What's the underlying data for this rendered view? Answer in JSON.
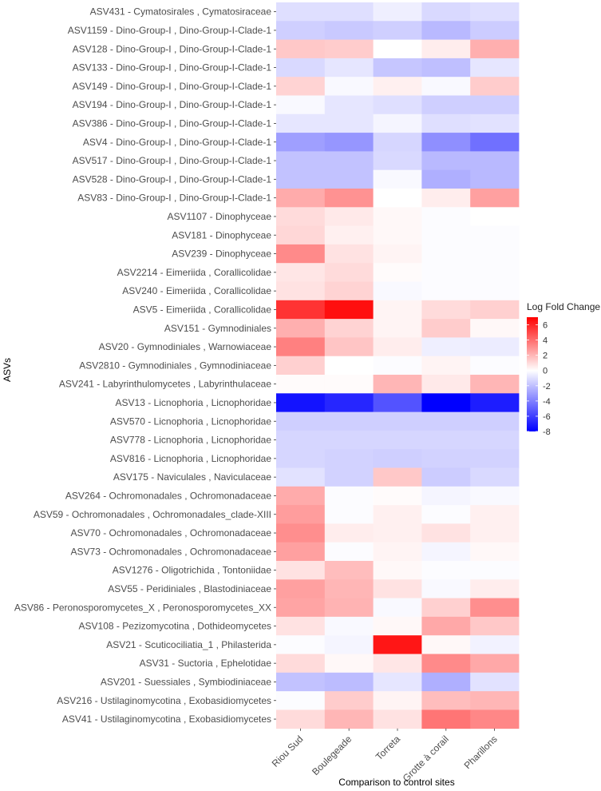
{
  "chart_data": {
    "type": "heatmap",
    "title": "",
    "xlabel": "Comparison to control sites",
    "ylabel": "ASVs",
    "columns": [
      "Riou Sud",
      "Boulegeade",
      "Torreta",
      "Grotte à corail",
      "Pharillons"
    ],
    "rows": [
      "ASV431 - Cymatosirales , Cymatosiraceae",
      "ASV1159 - Dino-Group-I , Dino-Group-I-Clade-1",
      "ASV128 - Dino-Group-I , Dino-Group-I-Clade-1",
      "ASV133 - Dino-Group-I , Dino-Group-I-Clade-1",
      "ASV149 - Dino-Group-I , Dino-Group-I-Clade-1",
      "ASV194 - Dino-Group-I , Dino-Group-I-Clade-1",
      "ASV386 - Dino-Group-I , Dino-Group-I-Clade-1",
      "ASV4 - Dino-Group-I , Dino-Group-I-Clade-1",
      "ASV517 - Dino-Group-I , Dino-Group-I-Clade-1",
      "ASV528 - Dino-Group-I , Dino-Group-I-Clade-1",
      "ASV83 - Dino-Group-I , Dino-Group-I-Clade-1",
      "ASV1107 - Dinophyceae",
      "ASV181 - Dinophyceae",
      "ASV239 - Dinophyceae",
      "ASV2214 - Eimeriida , Corallicolidae",
      "ASV240 - Eimeriida , Corallicolidae",
      "ASV5 - Eimeriida , Corallicolidae",
      "ASV151 - Gymnodiniales",
      "ASV20 - Gymnodiniales , Warnowiaceae",
      "ASV2810 - Gymnodiniales , Gymnodiniaceae",
      "ASV241 - Labyrinthulomycetes , Labyrinthulaceae",
      "ASV13 - Licnophoria , Licnophoridae",
      "ASV570 - Licnophoria , Licnophoridae",
      "ASV778 - Licnophoria , Licnophoridae",
      "ASV816 - Licnophoria , Licnophoridae",
      "ASV175 - Naviculales , Naviculaceae",
      "ASV264 - Ochromonadales , Ochromonadaceae",
      "ASV59 - Ochromonadales , Ochromonadales_clade-XIII",
      "ASV70 - Ochromonadales , Ochromonadaceae",
      "ASV73 - Ochromonadales , Ochromonadaceae",
      "ASV1276 - Oligotrichida , Tontoniidae",
      "ASV55 - Peridiniales , Blastodiniaceae",
      "ASV86 - Peronosporomycetes_X , Peronosporomycetes_XX",
      "ASV108 - Pezizomycotina , Dothideomycetes",
      "ASV21 - Scuticociliatia_1 , Philasterida",
      "ASV31 - Suctoria , Ephelotidae",
      "ASV201 - Suessiales , Symbiodiniaceae",
      "ASV216 - Ustilaginomycotina , Exobasidiomycetes",
      "ASV41 - Ustilaginomycotina , Exobasidiomycetes"
    ],
    "values": [
      [
        -1.0,
        -1.0,
        -0.5,
        -1.2,
        -1.0
      ],
      [
        -1.5,
        -1.7,
        -1.5,
        -2.2,
        -1.6
      ],
      [
        1.5,
        1.4,
        0.0,
        0.5,
        2.2
      ],
      [
        -1.2,
        -0.8,
        -1.8,
        -2.0,
        -0.8
      ],
      [
        1.2,
        -0.2,
        0.4,
        -0.2,
        1.4
      ],
      [
        -0.2,
        -0.8,
        -1.0,
        -1.5,
        -1.5
      ],
      [
        -0.8,
        -0.8,
        -0.3,
        -1.0,
        -0.9
      ],
      [
        -3.0,
        -3.3,
        -1.3,
        -3.5,
        -4.5
      ],
      [
        -1.9,
        -1.9,
        -1.2,
        -2.2,
        -2.2
      ],
      [
        -1.9,
        -1.9,
        -0.2,
        -2.5,
        -2.2
      ],
      [
        2.3,
        3.0,
        0.0,
        0.5,
        2.6
      ],
      [
        1.0,
        0.6,
        0.2,
        -0.1,
        0.0
      ],
      [
        1.1,
        0.4,
        0.2,
        -0.1,
        -0.1
      ],
      [
        3.2,
        0.8,
        0.3,
        -0.1,
        -0.1
      ],
      [
        0.7,
        1.0,
        0.1,
        -0.1,
        -0.1
      ],
      [
        0.8,
        1.2,
        -0.2,
        -0.1,
        -0.1
      ],
      [
        5.6,
        6.6,
        0.3,
        1.0,
        1.3
      ],
      [
        2.2,
        1.2,
        0.3,
        1.4,
        0.2
      ],
      [
        3.5,
        1.6,
        0.5,
        -0.5,
        -0.6
      ],
      [
        1.3,
        0.0,
        -0.1,
        0.3,
        -0.1
      ],
      [
        0.1,
        0.1,
        2.0,
        0.6,
        2.0
      ],
      [
        -7.4,
        -6.8,
        -5.4,
        -8.0,
        -7.1
      ],
      [
        -1.5,
        -1.5,
        -1.5,
        -1.5,
        -1.5
      ],
      [
        -1.3,
        -1.3,
        -1.3,
        -1.3,
        -1.3
      ],
      [
        -1.3,
        -1.4,
        -1.5,
        -1.4,
        -1.4
      ],
      [
        -0.9,
        -1.4,
        1.5,
        -1.6,
        -1.2
      ],
      [
        2.3,
        -0.1,
        0.1,
        -0.3,
        -0.2
      ],
      [
        2.7,
        -0.1,
        0.4,
        -0.1,
        0.4
      ],
      [
        3.1,
        0.5,
        0.4,
        0.8,
        0.4
      ],
      [
        2.6,
        -0.1,
        0.3,
        -0.3,
        0.2
      ],
      [
        0.8,
        1.8,
        0.2,
        -0.1,
        -0.1
      ],
      [
        2.6,
        2.0,
        0.8,
        -0.2,
        0.5
      ],
      [
        2.5,
        2.1,
        -0.2,
        1.3,
        3.1
      ],
      [
        0.8,
        -0.2,
        0.2,
        2.4,
        1.5
      ],
      [
        -0.1,
        -0.3,
        6.4,
        0.2,
        -0.4
      ],
      [
        1.0,
        0.2,
        0.7,
        3.2,
        2.4
      ],
      [
        -1.9,
        -2.1,
        -0.8,
        -2.5,
        -0.9
      ],
      [
        -0.1,
        1.4,
        0.3,
        1.8,
        2.0
      ],
      [
        1.0,
        2.0,
        0.8,
        3.8,
        3.3
      ]
    ],
    "legend": {
      "title": "Log Fold Change",
      "ticks": [
        6,
        4,
        2,
        0,
        -2,
        -4,
        -6,
        -8
      ],
      "range": [
        -8,
        7
      ],
      "position": "right",
      "low_color": "#0000ff",
      "mid_color": "#ffffff",
      "high_color": "#ff0000"
    },
    "grid": true
  }
}
